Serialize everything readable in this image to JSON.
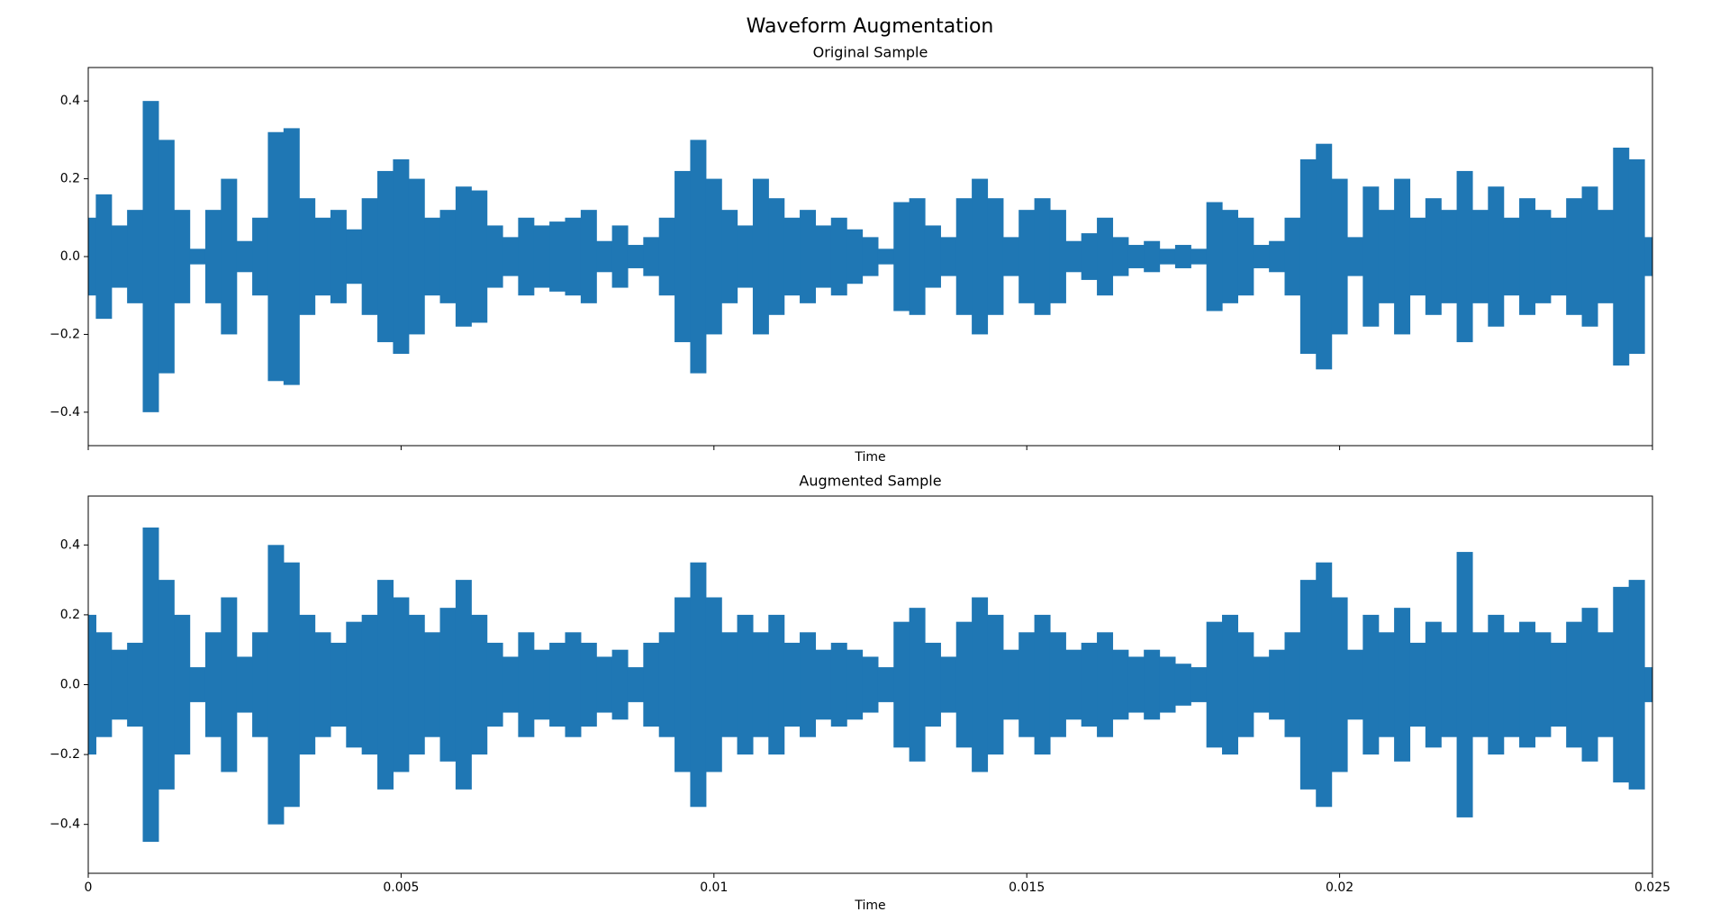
{
  "title": "Waveform Augmentation",
  "chart_data": [
    {
      "type": "waveform",
      "title": "Original Sample",
      "xlabel": "Time",
      "color": "#1f77b4",
      "x": [
        0,
        0.00025,
        0.0005,
        0.00075,
        0.001,
        0.00125,
        0.0015,
        0.00175,
        0.002,
        0.00225,
        0.0025,
        0.00275,
        0.003,
        0.00325,
        0.0035,
        0.00375,
        0.004,
        0.00425,
        0.0045,
        0.00475,
        0.005,
        0.00525,
        0.0055,
        0.00575,
        0.006,
        0.00625,
        0.0065,
        0.00675,
        0.007,
        0.00725,
        0.0075,
        0.00775,
        0.008,
        0.00825,
        0.0085,
        0.00875,
        0.009,
        0.00925,
        0.0095,
        0.00975,
        0.01,
        0.01025,
        0.0105,
        0.01075,
        0.011,
        0.01125,
        0.0115,
        0.01175,
        0.012,
        0.01225,
        0.0125,
        0.01275,
        0.013,
        0.01325,
        0.0135,
        0.01375,
        0.014,
        0.01425,
        0.0145,
        0.01475,
        0.015,
        0.01525,
        0.0155,
        0.01575,
        0.016,
        0.01625,
        0.0165,
        0.01675,
        0.017,
        0.01725,
        0.0175,
        0.01775,
        0.018,
        0.01825,
        0.0185,
        0.01875,
        0.019,
        0.01925,
        0.0195,
        0.01975,
        0.02,
        0.02025,
        0.0205,
        0.02075,
        0.021,
        0.02125,
        0.0215,
        0.02175,
        0.022,
        0.02225,
        0.0225,
        0.02275,
        0.023,
        0.02325,
        0.0235,
        0.02375,
        0.024,
        0.02425,
        0.0245,
        0.02475,
        0.025
      ],
      "values": [
        0.1,
        0.16,
        0.08,
        0.12,
        0.4,
        0.3,
        0.12,
        0.02,
        0.12,
        0.2,
        0.04,
        0.1,
        0.32,
        0.33,
        0.15,
        0.1,
        0.12,
        0.07,
        0.15,
        0.22,
        0.25,
        0.2,
        0.1,
        0.12,
        0.18,
        0.17,
        0.08,
        0.05,
        0.1,
        0.08,
        0.09,
        0.1,
        0.12,
        0.04,
        0.08,
        0.03,
        0.05,
        0.1,
        0.22,
        0.3,
        0.2,
        0.12,
        0.08,
        0.2,
        0.15,
        0.1,
        0.12,
        0.08,
        0.1,
        0.07,
        0.05,
        0.02,
        0.14,
        0.15,
        0.08,
        0.05,
        0.15,
        0.2,
        0.15,
        0.05,
        0.12,
        0.15,
        0.12,
        0.04,
        0.06,
        0.1,
        0.05,
        0.03,
        0.04,
        0.02,
        0.03,
        0.02,
        0.14,
        0.12,
        0.1,
        0.03,
        0.04,
        0.1,
        0.25,
        0.29,
        0.2,
        0.05,
        0.18,
        0.12,
        0.2,
        0.1,
        0.15,
        0.12,
        0.22,
        0.12,
        0.18,
        0.1,
        0.15,
        0.12,
        0.1,
        0.15,
        0.18,
        0.12,
        0.28,
        0.25,
        0.05
      ],
      "xlim": [
        0,
        0.025
      ],
      "ylim": [
        -0.486,
        0.486
      ],
      "yticks": [
        {
          "value": -0.4,
          "label": "−0.4"
        },
        {
          "value": -0.2,
          "label": "−0.2"
        },
        {
          "value": 0,
          "label": "0.0"
        },
        0.2,
        0.4
      ]
    },
    {
      "type": "waveform",
      "title": "Augmented Sample",
      "xlabel": "Time",
      "color": "#1f77b4",
      "x": [
        0,
        0.00025,
        0.0005,
        0.00075,
        0.001,
        0.00125,
        0.0015,
        0.00175,
        0.002,
        0.00225,
        0.0025,
        0.00275,
        0.003,
        0.00325,
        0.0035,
        0.00375,
        0.004,
        0.00425,
        0.0045,
        0.00475,
        0.005,
        0.00525,
        0.0055,
        0.00575,
        0.006,
        0.00625,
        0.0065,
        0.00675,
        0.007,
        0.00725,
        0.0075,
        0.00775,
        0.008,
        0.00825,
        0.0085,
        0.00875,
        0.009,
        0.00925,
        0.0095,
        0.00975,
        0.01,
        0.01025,
        0.0105,
        0.01075,
        0.011,
        0.01125,
        0.0115,
        0.01175,
        0.012,
        0.01225,
        0.0125,
        0.01275,
        0.013,
        0.01325,
        0.0135,
        0.01375,
        0.014,
        0.01425,
        0.0145,
        0.01475,
        0.015,
        0.01525,
        0.0155,
        0.01575,
        0.016,
        0.01625,
        0.0165,
        0.01675,
        0.017,
        0.01725,
        0.0175,
        0.01775,
        0.018,
        0.01825,
        0.0185,
        0.01875,
        0.019,
        0.01925,
        0.0195,
        0.01975,
        0.02,
        0.02025,
        0.0205,
        0.02075,
        0.021,
        0.02125,
        0.0215,
        0.02175,
        0.022,
        0.02225,
        0.0225,
        0.02275,
        0.023,
        0.02325,
        0.0235,
        0.02375,
        0.024,
        0.02425,
        0.0245,
        0.02475,
        0.025
      ],
      "values": [
        0.2,
        0.15,
        0.1,
        0.12,
        0.45,
        0.3,
        0.2,
        0.05,
        0.15,
        0.25,
        0.08,
        0.15,
        0.4,
        0.35,
        0.2,
        0.15,
        0.12,
        0.18,
        0.2,
        0.3,
        0.25,
        0.2,
        0.15,
        0.22,
        0.3,
        0.2,
        0.12,
        0.08,
        0.15,
        0.1,
        0.12,
        0.15,
        0.12,
        0.08,
        0.1,
        0.05,
        0.12,
        0.15,
        0.25,
        0.35,
        0.25,
        0.15,
        0.2,
        0.15,
        0.2,
        0.12,
        0.15,
        0.1,
        0.12,
        0.1,
        0.08,
        0.05,
        0.18,
        0.22,
        0.12,
        0.08,
        0.18,
        0.25,
        0.2,
        0.1,
        0.15,
        0.2,
        0.15,
        0.1,
        0.12,
        0.15,
        0.1,
        0.08,
        0.1,
        0.08,
        0.06,
        0.05,
        0.18,
        0.2,
        0.15,
        0.08,
        0.1,
        0.15,
        0.3,
        0.35,
        0.25,
        0.1,
        0.2,
        0.15,
        0.22,
        0.12,
        0.18,
        0.15,
        0.38,
        0.15,
        0.2,
        0.15,
        0.18,
        0.15,
        0.12,
        0.18,
        0.22,
        0.15,
        0.28,
        0.3,
        0.05
      ],
      "xlim": [
        0,
        0.025
      ],
      "ylim": [
        -0.54,
        0.54
      ],
      "xticks": [
        0,
        0.005,
        0.01,
        0.015,
        0.02,
        0.025
      ],
      "yticks": [
        {
          "value": -0.4,
          "label": "−0.4"
        },
        {
          "value": -0.2,
          "label": "−0.2"
        },
        {
          "value": 0,
          "label": "0.0"
        },
        0.2,
        0.4
      ]
    }
  ]
}
